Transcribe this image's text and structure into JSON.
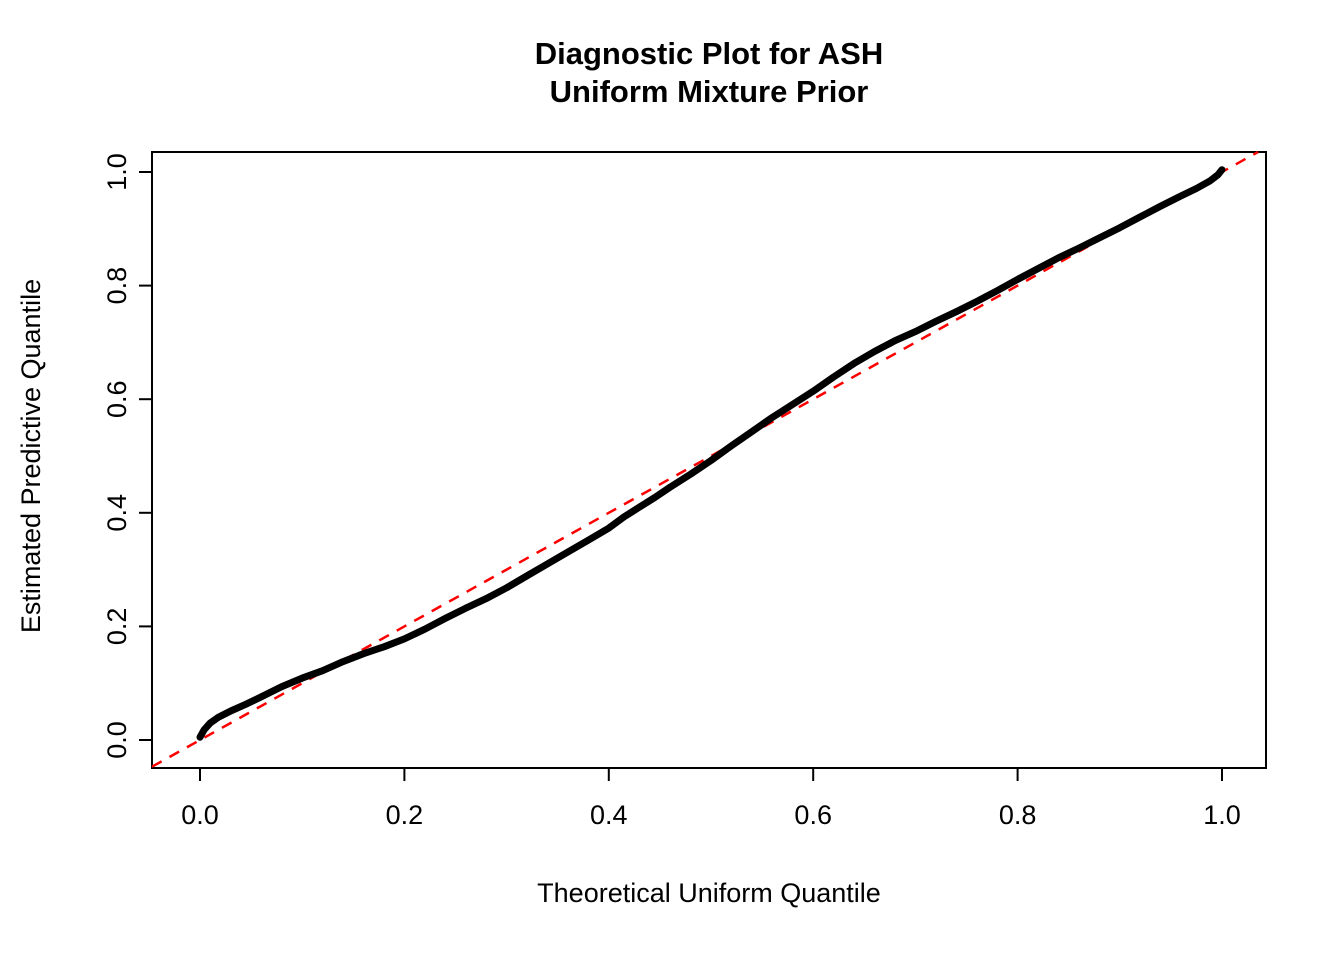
{
  "chart_data": {
    "type": "line",
    "title_line1": "Diagnostic Plot for ASH",
    "title_line2": "Uniform Mixture Prior",
    "xlabel": "Theoretical Uniform Quantile",
    "ylabel": "Estimated Predictive Quantile",
    "xlim": [
      -0.047,
      1.043
    ],
    "ylim": [
      -0.049,
      1.035
    ],
    "x_ticks": [
      0.0,
      0.2,
      0.4,
      0.6,
      0.8,
      1.0
    ],
    "y_ticks": [
      0.0,
      0.2,
      0.4,
      0.6,
      0.8,
      1.0
    ],
    "x_tick_labels": [
      "0.0",
      "0.2",
      "0.4",
      "0.6",
      "0.8",
      "1.0"
    ],
    "y_tick_labels": [
      "0.0",
      "0.2",
      "0.4",
      "0.6",
      "0.8",
      "1.0"
    ],
    "grid": false,
    "legend": "none",
    "background_color": "#ffffff",
    "axis_color": "#000000",
    "series": [
      {
        "name": "estimated-vs-theoretical-quantiles",
        "color": "#000000",
        "style": "thick-solid-points",
        "points": [
          [
            0.0,
            0.005
          ],
          [
            0.004,
            0.018
          ],
          [
            0.01,
            0.03
          ],
          [
            0.018,
            0.04
          ],
          [
            0.03,
            0.051
          ],
          [
            0.045,
            0.063
          ],
          [
            0.06,
            0.076
          ],
          [
            0.08,
            0.094
          ],
          [
            0.1,
            0.109
          ],
          [
            0.12,
            0.122
          ],
          [
            0.14,
            0.138
          ],
          [
            0.16,
            0.152
          ],
          [
            0.18,
            0.164
          ],
          [
            0.2,
            0.178
          ],
          [
            0.22,
            0.195
          ],
          [
            0.24,
            0.214
          ],
          [
            0.26,
            0.232
          ],
          [
            0.28,
            0.249
          ],
          [
            0.3,
            0.268
          ],
          [
            0.32,
            0.289
          ],
          [
            0.34,
            0.31
          ],
          [
            0.36,
            0.331
          ],
          [
            0.38,
            0.352
          ],
          [
            0.4,
            0.373
          ],
          [
            0.415,
            0.393
          ],
          [
            0.43,
            0.41
          ],
          [
            0.445,
            0.427
          ],
          [
            0.46,
            0.445
          ],
          [
            0.48,
            0.468
          ],
          [
            0.5,
            0.492
          ],
          [
            0.52,
            0.518
          ],
          [
            0.54,
            0.543
          ],
          [
            0.56,
            0.568
          ],
          [
            0.58,
            0.591
          ],
          [
            0.6,
            0.614
          ],
          [
            0.62,
            0.639
          ],
          [
            0.64,
            0.663
          ],
          [
            0.66,
            0.684
          ],
          [
            0.68,
            0.703
          ],
          [
            0.7,
            0.719
          ],
          [
            0.72,
            0.737
          ],
          [
            0.74,
            0.754
          ],
          [
            0.76,
            0.772
          ],
          [
            0.78,
            0.791
          ],
          [
            0.8,
            0.811
          ],
          [
            0.82,
            0.83
          ],
          [
            0.84,
            0.849
          ],
          [
            0.86,
            0.866
          ],
          [
            0.88,
            0.884
          ],
          [
            0.9,
            0.902
          ],
          [
            0.92,
            0.921
          ],
          [
            0.94,
            0.94
          ],
          [
            0.96,
            0.958
          ],
          [
            0.975,
            0.971
          ],
          [
            0.988,
            0.984
          ],
          [
            0.996,
            0.995
          ],
          [
            1.0,
            1.004
          ]
        ]
      },
      {
        "name": "identity-reference-line",
        "color": "#ff0000",
        "style": "dashed",
        "definition": "y = x"
      }
    ]
  }
}
